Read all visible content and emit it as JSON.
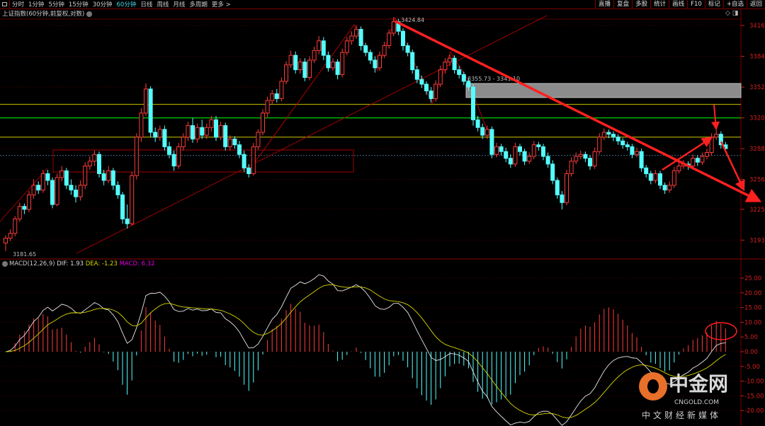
{
  "toolbar": {
    "tabs": [
      "分时",
      "1分钟",
      "5分钟",
      "15分钟",
      "30分钟",
      "60分钟",
      "日线",
      "周线",
      "月线",
      "多周期",
      "更多 >"
    ],
    "active": "60分钟",
    "right_buttons": [
      "直播",
      "复盘",
      "多股",
      "统计",
      "画线",
      "F10",
      "标记",
      "+自选",
      "返回"
    ]
  },
  "title": "上证指数(60分钟,前复权,对数)",
  "colors": {
    "up": "#ff3c3c",
    "down": "#54ffff",
    "dif": "#e8e8e8",
    "dea": "#d8d800",
    "macd_label": "#e000e0",
    "axis": "#d02020",
    "hline_yellow": "#a8a000",
    "hline_green": "#00c000",
    "box_gray": "#8c8c8c"
  },
  "macd_header": {
    "name": "MACD(12,26,9)",
    "dif": "DIF: 1.93",
    "dea": "DEA: -1.23",
    "macd": "MACD: 6.32"
  },
  "watermark": {
    "cn": "中金网",
    "en": "CNGOLD.COM",
    "sub": "中文财经新媒体"
  },
  "chart_data": {
    "type": "candlestick",
    "title": "上证指数 60分钟",
    "price_ticks": [
      "3416",
      "3384",
      "3352",
      "3320",
      "3288",
      "3256",
      "3225",
      "3193"
    ],
    "price_tick_values": [
      3416,
      3384,
      3352,
      3320,
      3288,
      3256,
      3225,
      3193
    ],
    "macd_ticks": [
      "25.00",
      "20.00",
      "15.00",
      "10.00",
      "5.00",
      "0.00",
      "-5.00",
      "-10.00",
      "-15.00",
      "-20.00"
    ],
    "macd_tick_values": [
      25,
      20,
      15,
      10,
      5,
      0,
      -5,
      -10,
      -15,
      -20
    ],
    "annotations": {
      "high": "3424.84",
      "low": "3181.65",
      "zone": "3355.73 - 3341.10"
    },
    "zone": [
      3341.1,
      3355.73
    ],
    "hlines": [
      {
        "price": 3334,
        "color": "yellow"
      },
      {
        "price": 3320,
        "color": "green"
      },
      {
        "price": 3300,
        "color": "yellow"
      },
      {
        "price": 3281,
        "color": "blue-dotted"
      }
    ],
    "ohlc": [
      [
        3190,
        3198,
        3181.65,
        3195
      ],
      [
        3195,
        3204,
        3192,
        3200
      ],
      [
        3200,
        3218,
        3197,
        3215
      ],
      [
        3215,
        3232,
        3212,
        3228
      ],
      [
        3228,
        3231,
        3220,
        3225
      ],
      [
        3225,
        3244,
        3222,
        3240
      ],
      [
        3240,
        3256,
        3236,
        3250
      ],
      [
        3250,
        3254,
        3241,
        3245
      ],
      [
        3245,
        3266,
        3242,
        3262
      ],
      [
        3262,
        3266,
        3250,
        3255
      ],
      [
        3255,
        3258,
        3226,
        3230
      ],
      [
        3230,
        3262,
        3228,
        3258
      ],
      [
        3258,
        3270,
        3254,
        3265
      ],
      [
        3265,
        3268,
        3246,
        3250
      ],
      [
        3250,
        3256,
        3240,
        3245
      ],
      [
        3245,
        3250,
        3232,
        3238
      ],
      [
        3238,
        3255,
        3234,
        3250
      ],
      [
        3250,
        3274,
        3246,
        3270
      ],
      [
        3270,
        3280,
        3266,
        3275
      ],
      [
        3275,
        3286,
        3270,
        3282
      ],
      [
        3282,
        3285,
        3258,
        3262
      ],
      [
        3262,
        3266,
        3250,
        3255
      ],
      [
        3255,
        3270,
        3252,
        3265
      ],
      [
        3265,
        3268,
        3245,
        3250
      ],
      [
        3250,
        3254,
        3236,
        3240
      ],
      [
        3240,
        3243,
        3210,
        3215
      ],
      [
        3215,
        3230,
        3205,
        3210
      ],
      [
        3210,
        3264,
        3208,
        3260
      ],
      [
        3260,
        3304,
        3256,
        3300
      ],
      [
        3300,
        3330,
        3295,
        3325
      ],
      [
        3325,
        3356,
        3322,
        3350
      ],
      [
        3350,
        3353,
        3300,
        3305
      ],
      [
        3305,
        3310,
        3295,
        3300
      ],
      [
        3300,
        3312,
        3296,
        3308
      ],
      [
        3308,
        3312,
        3286,
        3290
      ],
      [
        3290,
        3295,
        3278,
        3282
      ],
      [
        3282,
        3286,
        3265,
        3270
      ],
      [
        3270,
        3294,
        3267,
        3290
      ],
      [
        3290,
        3304,
        3286,
        3300
      ],
      [
        3300,
        3316,
        3296,
        3312
      ],
      [
        3312,
        3320,
        3294,
        3298
      ],
      [
        3298,
        3314,
        3294,
        3310
      ],
      [
        3310,
        3318,
        3298,
        3302
      ],
      [
        3302,
        3314,
        3298,
        3310
      ],
      [
        3310,
        3322,
        3306,
        3318
      ],
      [
        3318,
        3322,
        3296,
        3300
      ],
      [
        3300,
        3316,
        3297,
        3312
      ],
      [
        3312,
        3315,
        3286,
        3290
      ],
      [
        3290,
        3302,
        3286,
        3298
      ],
      [
        3298,
        3301,
        3288,
        3292
      ],
      [
        3292,
        3296,
        3278,
        3282
      ],
      [
        3282,
        3286,
        3264,
        3268
      ],
      [
        3268,
        3272,
        3258,
        3262
      ],
      [
        3262,
        3294,
        3260,
        3290
      ],
      [
        3290,
        3308,
        3287,
        3305
      ],
      [
        3305,
        3329,
        3302,
        3325
      ],
      [
        3325,
        3342,
        3321,
        3338
      ],
      [
        3338,
        3349,
        3334,
        3345
      ],
      [
        3345,
        3350,
        3336,
        3340
      ],
      [
        3340,
        3362,
        3337,
        3358
      ],
      [
        3358,
        3379,
        3355,
        3375
      ],
      [
        3375,
        3390,
        3372,
        3385
      ],
      [
        3385,
        3389,
        3366,
        3370
      ],
      [
        3370,
        3382,
        3366,
        3378
      ],
      [
        3378,
        3382,
        3358,
        3362
      ],
      [
        3362,
        3384,
        3359,
        3380
      ],
      [
        3380,
        3394,
        3377,
        3390
      ],
      [
        3390,
        3405,
        3386,
        3400
      ],
      [
        3400,
        3404,
        3380,
        3385
      ],
      [
        3385,
        3389,
        3368,
        3372
      ],
      [
        3372,
        3382,
        3369,
        3378
      ],
      [
        3378,
        3381,
        3360,
        3365
      ],
      [
        3365,
        3392,
        3362,
        3388
      ],
      [
        3388,
        3404,
        3385,
        3400
      ],
      [
        3400,
        3410,
        3396,
        3405
      ],
      [
        3405,
        3416,
        3402,
        3412
      ],
      [
        3412,
        3415,
        3390,
        3395
      ],
      [
        3395,
        3398,
        3384,
        3388
      ],
      [
        3388,
        3391,
        3376,
        3380
      ],
      [
        3380,
        3384,
        3367,
        3372
      ],
      [
        3372,
        3389,
        3369,
        3385
      ],
      [
        3385,
        3399,
        3382,
        3395
      ],
      [
        3395,
        3412,
        3392,
        3408
      ],
      [
        3408,
        3424.84,
        3405,
        3420
      ],
      [
        3420,
        3423,
        3406,
        3410
      ],
      [
        3410,
        3413,
        3390,
        3395
      ],
      [
        3395,
        3398,
        3384,
        3388
      ],
      [
        3388,
        3391,
        3366,
        3370
      ],
      [
        3370,
        3374,
        3356,
        3360
      ],
      [
        3360,
        3364,
        3351,
        3355
      ],
      [
        3355,
        3358,
        3344,
        3348
      ],
      [
        3348,
        3352,
        3336,
        3340
      ],
      [
        3340,
        3359,
        3337,
        3355
      ],
      [
        3355,
        3374,
        3352,
        3370
      ],
      [
        3370,
        3382,
        3366,
        3378
      ],
      [
        3378,
        3386,
        3374,
        3382
      ],
      [
        3382,
        3385,
        3366,
        3370
      ],
      [
        3370,
        3374,
        3361,
        3365
      ],
      [
        3365,
        3368,
        3354,
        3358
      ],
      [
        3358,
        3362,
        3348,
        3352
      ],
      [
        3352,
        3355,
        3312,
        3318
      ],
      [
        3318,
        3322,
        3306,
        3310
      ],
      [
        3310,
        3314,
        3298,
        3302
      ],
      [
        3302,
        3312,
        3298,
        3308
      ],
      [
        3308,
        3311,
        3278,
        3282
      ],
      [
        3282,
        3294,
        3279,
        3290
      ],
      [
        3290,
        3293,
        3281,
        3285
      ],
      [
        3285,
        3289,
        3274,
        3278
      ],
      [
        3278,
        3282,
        3268,
        3272
      ],
      [
        3272,
        3294,
        3269,
        3290
      ],
      [
        3290,
        3293,
        3281,
        3285
      ],
      [
        3285,
        3288,
        3271,
        3275
      ],
      [
        3275,
        3284,
        3272,
        3280
      ],
      [
        3280,
        3296,
        3277,
        3292
      ],
      [
        3292,
        3295,
        3286,
        3290
      ],
      [
        3290,
        3293,
        3276,
        3280
      ],
      [
        3280,
        3284,
        3268,
        3272
      ],
      [
        3272,
        3276,
        3251,
        3255
      ],
      [
        3255,
        3258,
        3236,
        3240
      ],
      [
        3240,
        3244,
        3225,
        3232
      ],
      [
        3232,
        3266,
        3229,
        3262
      ],
      [
        3262,
        3279,
        3259,
        3275
      ],
      [
        3275,
        3284,
        3272,
        3280
      ],
      [
        3280,
        3286,
        3277,
        3282
      ],
      [
        3282,
        3285,
        3274,
        3278
      ],
      [
        3278,
        3281,
        3266,
        3270
      ],
      [
        3270,
        3289,
        3267,
        3285
      ],
      [
        3285,
        3304,
        3282,
        3300
      ],
      [
        3300,
        3309,
        3297,
        3305
      ],
      [
        3305,
        3308,
        3299,
        3303
      ],
      [
        3303,
        3306,
        3296,
        3300
      ],
      [
        3300,
        3303,
        3292,
        3296
      ],
      [
        3296,
        3299,
        3288,
        3292
      ],
      [
        3292,
        3295,
        3286,
        3290
      ],
      [
        3290,
        3293,
        3278,
        3282
      ],
      [
        3282,
        3289,
        3279,
        3285
      ],
      [
        3285,
        3288,
        3264,
        3268
      ],
      [
        3268,
        3271,
        3258,
        3262
      ],
      [
        3262,
        3265,
        3251,
        3255
      ],
      [
        3255,
        3266,
        3252,
        3262
      ],
      [
        3262,
        3265,
        3246,
        3250
      ],
      [
        3250,
        3253,
        3241,
        3245
      ],
      [
        3245,
        3254,
        3242,
        3250
      ],
      [
        3250,
        3269,
        3247,
        3265
      ],
      [
        3265,
        3274,
        3262,
        3270
      ],
      [
        3270,
        3276,
        3267,
        3272
      ],
      [
        3272,
        3275,
        3266,
        3270
      ],
      [
        3270,
        3282,
        3267,
        3278
      ],
      [
        3278,
        3281,
        3270,
        3274
      ],
      [
        3274,
        3284,
        3271,
        3280
      ],
      [
        3280,
        3288,
        3277,
        3284
      ],
      [
        3284,
        3304,
        3281,
        3300
      ],
      [
        3300,
        3308,
        3297,
        3303
      ],
      [
        3303,
        3306,
        3288,
        3292
      ],
      [
        3292,
        3295,
        3284,
        3288
      ]
    ],
    "macd_params": [
      12,
      26,
      9
    ],
    "macd_last": {
      "dif": 1.93,
      "dea": -1.23,
      "macd": 6.32
    }
  }
}
